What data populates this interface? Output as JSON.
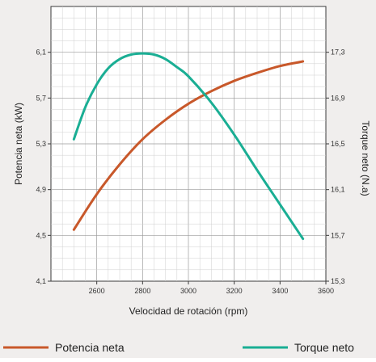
{
  "chart_data": {
    "type": "line",
    "title": "",
    "xlabel": "Velocidad de rotación (rpm)",
    "ylabel_left": "Potencia neta (kW)",
    "ylabel_right": "Torque neto (N.a)",
    "xlim": [
      2400,
      3600
    ],
    "ylim_left": [
      4.1,
      6.5
    ],
    "ylim_right": [
      15.3,
      17.7
    ],
    "x_ticks": [
      2600,
      2800,
      3000,
      3200,
      3400,
      3600
    ],
    "y_left_ticks": [
      4.1,
      4.5,
      4.9,
      5.3,
      5.7,
      6.1
    ],
    "y_right_ticks": [
      15.3,
      15.7,
      16.1,
      16.5,
      16.9,
      17.3
    ],
    "y_left_tick_labels": [
      "4,1",
      "4,5",
      "4,9",
      "5,3",
      "5,7",
      "6,1"
    ],
    "y_right_tick_labels": [
      "15,3",
      "15,7",
      "16,1",
      "16,5",
      "16,9",
      "17,3"
    ],
    "grid": true,
    "legend_position": "bottom",
    "series": [
      {
        "name": "Potencia neta",
        "axis": "left",
        "color": "#c8582a",
        "x": [
          2500,
          2600,
          2700,
          2800,
          2900,
          3000,
          3100,
          3200,
          3300,
          3400,
          3500
        ],
        "values": [
          4.55,
          4.86,
          5.12,
          5.34,
          5.51,
          5.65,
          5.76,
          5.85,
          5.92,
          5.98,
          6.02
        ]
      },
      {
        "name": "Torque neto",
        "axis": "right",
        "color": "#1aae94",
        "x": [
          2500,
          2550,
          2600,
          2650,
          2700,
          2750,
          2800,
          2850,
          2900,
          2950,
          3000,
          3100,
          3200,
          3300,
          3400,
          3500
        ],
        "values": [
          16.54,
          16.82,
          17.02,
          17.16,
          17.24,
          17.28,
          17.29,
          17.28,
          17.24,
          17.17,
          17.09,
          16.86,
          16.58,
          16.27,
          15.97,
          15.67
        ]
      }
    ]
  }
}
